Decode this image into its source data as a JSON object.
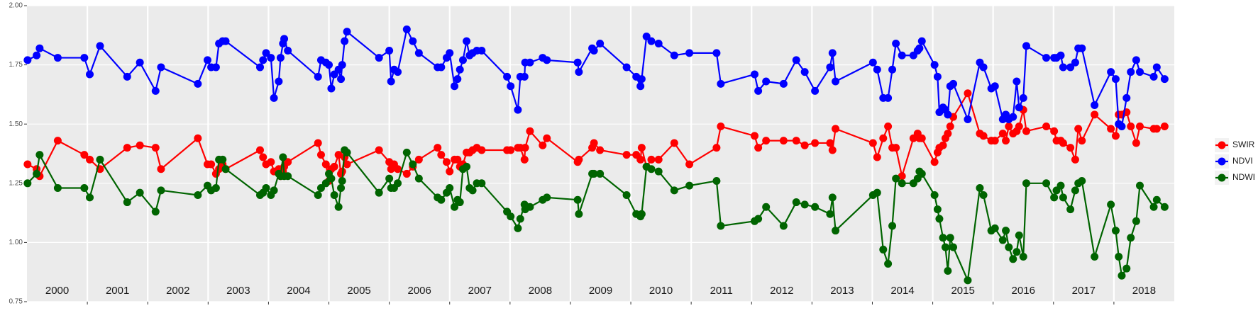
{
  "chart_data": {
    "type": "line",
    "x": [
      2000.01,
      2000.16,
      2000.21,
      2000.51,
      2000.95,
      2001.04,
      2001.21,
      2001.66,
      2001.87,
      2002.13,
      2002.22,
      2002.83,
      2002.99,
      2003.05,
      2003.13,
      2003.18,
      2003.24,
      2003.29,
      2003.86,
      2003.91,
      2003.96,
      2004.04,
      2004.09,
      2004.17,
      2004.2,
      2004.24,
      2004.26,
      2004.32,
      2004.82,
      2004.87,
      2004.95,
      2005.0,
      2005.04,
      2005.09,
      2005.16,
      2005.2,
      2005.22,
      2005.26,
      2005.3,
      2005.83,
      2006.0,
      2006.03,
      2006.08,
      2006.14,
      2006.29,
      2006.39,
      2006.49,
      2006.8,
      2006.86,
      2006.95,
      2007.0,
      2007.08,
      2007.13,
      2007.17,
      2007.22,
      2007.28,
      2007.33,
      2007.38,
      2007.45,
      2007.53,
      2007.95,
      2008.01,
      2008.13,
      2008.17,
      2008.24,
      2008.25,
      2008.33,
      2008.54,
      2008.61,
      2009.12,
      2009.14,
      2009.36,
      2009.39,
      2009.49,
      2009.93,
      2010.09,
      2010.16,
      2010.18,
      2010.26,
      2010.34,
      2010.46,
      2010.72,
      2010.97,
      2011.42,
      2011.49,
      2012.05,
      2012.11,
      2012.24,
      2012.53,
      2012.74,
      2012.88,
      2013.05,
      2013.3,
      2013.34,
      2013.39,
      2014.01,
      2014.08,
      2014.18,
      2014.26,
      2014.33,
      2014.39,
      2014.49,
      2014.68,
      2014.75,
      2014.78,
      2014.82,
      2015.03,
      2015.08,
      2015.11,
      2015.17,
      2015.21,
      2015.25,
      2015.29,
      2015.34,
      2015.58,
      2015.78,
      2015.84,
      2015.97,
      2016.03,
      2016.16,
      2016.21,
      2016.26,
      2016.33,
      2016.39,
      2016.43,
      2016.5,
      2016.55,
      2016.88,
      2017.01,
      2017.05,
      2017.12,
      2017.16,
      2017.28,
      2017.36,
      2017.41,
      2017.47,
      2017.68,
      2017.95,
      2018.03,
      2018.08,
      2018.13,
      2018.21,
      2018.28,
      2018.37,
      2018.43,
      2018.66,
      2018.71,
      2018.84
    ],
    "series": [
      {
        "name": "SWIR",
        "color": "#ff0000",
        "values": [
          1.33,
          1.31,
          1.28,
          1.43,
          1.37,
          1.35,
          1.31,
          1.4,
          1.41,
          1.4,
          1.31,
          1.44,
          1.33,
          1.33,
          1.29,
          1.31,
          1.33,
          1.31,
          1.39,
          1.36,
          1.33,
          1.34,
          1.3,
          1.31,
          1.28,
          1.3,
          1.32,
          1.34,
          1.42,
          1.37,
          1.33,
          1.26,
          1.31,
          1.32,
          1.37,
          1.29,
          1.3,
          1.36,
          1.33,
          1.39,
          1.34,
          1.31,
          1.33,
          1.31,
          1.29,
          1.32,
          1.35,
          1.4,
          1.37,
          1.34,
          1.3,
          1.35,
          1.35,
          1.32,
          1.33,
          1.38,
          1.38,
          1.39,
          1.4,
          1.39,
          1.39,
          1.39,
          1.4,
          1.4,
          1.35,
          1.4,
          1.47,
          1.41,
          1.44,
          1.34,
          1.35,
          1.4,
          1.42,
          1.39,
          1.37,
          1.37,
          1.35,
          1.4,
          1.32,
          1.35,
          1.35,
          1.42,
          1.33,
          1.4,
          1.49,
          1.45,
          1.4,
          1.43,
          1.43,
          1.43,
          1.41,
          1.42,
          1.42,
          1.39,
          1.48,
          1.42,
          1.36,
          1.44,
          1.49,
          1.4,
          1.4,
          1.28,
          1.44,
          1.46,
          1.44,
          1.44,
          1.34,
          1.38,
          1.4,
          1.41,
          1.44,
          1.46,
          1.49,
          1.53,
          1.63,
          1.46,
          1.45,
          1.43,
          1.43,
          1.46,
          1.43,
          1.49,
          1.46,
          1.47,
          1.49,
          1.56,
          1.47,
          1.49,
          1.47,
          1.43,
          1.43,
          1.42,
          1.4,
          1.35,
          1.48,
          1.43,
          1.54,
          1.48,
          1.45,
          1.54,
          1.54,
          1.55,
          1.49,
          1.42,
          1.49,
          1.48,
          1.48,
          1.49
        ]
      },
      {
        "name": "NDVI",
        "color": "#0000ff",
        "values": [
          1.77,
          1.79,
          1.82,
          1.78,
          1.78,
          1.71,
          1.83,
          1.7,
          1.76,
          1.64,
          1.74,
          1.67,
          1.77,
          1.74,
          1.74,
          1.84,
          1.85,
          1.85,
          1.74,
          1.77,
          1.8,
          1.78,
          1.61,
          1.68,
          1.78,
          1.84,
          1.86,
          1.81,
          1.7,
          1.77,
          1.76,
          1.75,
          1.65,
          1.71,
          1.73,
          1.69,
          1.75,
          1.85,
          1.89,
          1.78,
          1.81,
          1.68,
          1.73,
          1.72,
          1.9,
          1.85,
          1.8,
          1.74,
          1.74,
          1.78,
          1.8,
          1.66,
          1.69,
          1.73,
          1.77,
          1.85,
          1.79,
          1.8,
          1.81,
          1.81,
          1.7,
          1.66,
          1.56,
          1.7,
          1.7,
          1.76,
          1.76,
          1.78,
          1.77,
          1.76,
          1.72,
          1.82,
          1.81,
          1.84,
          1.74,
          1.7,
          1.66,
          1.69,
          1.87,
          1.85,
          1.84,
          1.79,
          1.8,
          1.8,
          1.67,
          1.71,
          1.64,
          1.68,
          1.67,
          1.77,
          1.72,
          1.64,
          1.74,
          1.8,
          1.68,
          1.76,
          1.73,
          1.61,
          1.61,
          1.73,
          1.84,
          1.79,
          1.79,
          1.81,
          1.82,
          1.85,
          1.75,
          1.7,
          1.55,
          1.57,
          1.56,
          1.54,
          1.66,
          1.67,
          1.52,
          1.76,
          1.74,
          1.65,
          1.66,
          1.52,
          1.54,
          1.52,
          1.53,
          1.68,
          1.57,
          1.61,
          1.83,
          1.78,
          1.78,
          1.78,
          1.79,
          1.74,
          1.74,
          1.76,
          1.82,
          1.82,
          1.58,
          1.72,
          1.69,
          1.5,
          1.49,
          1.61,
          1.72,
          1.77,
          1.72,
          1.7,
          1.74,
          1.69
        ]
      },
      {
        "name": "NDWI",
        "color": "#006400",
        "values": [
          1.25,
          1.29,
          1.37,
          1.23,
          1.23,
          1.19,
          1.35,
          1.17,
          1.21,
          1.13,
          1.22,
          1.2,
          1.24,
          1.22,
          1.23,
          1.35,
          1.35,
          1.31,
          1.2,
          1.21,
          1.23,
          1.2,
          1.22,
          1.29,
          1.28,
          1.36,
          1.28,
          1.28,
          1.2,
          1.23,
          1.25,
          1.29,
          1.27,
          1.2,
          1.15,
          1.23,
          1.26,
          1.39,
          1.38,
          1.21,
          1.27,
          1.23,
          1.23,
          1.25,
          1.38,
          1.33,
          1.27,
          1.19,
          1.18,
          1.21,
          1.23,
          1.15,
          1.18,
          1.17,
          1.31,
          1.32,
          1.23,
          1.22,
          1.25,
          1.25,
          1.13,
          1.11,
          1.06,
          1.1,
          1.16,
          1.14,
          1.15,
          1.18,
          1.19,
          1.18,
          1.12,
          1.29,
          1.29,
          1.29,
          1.2,
          1.12,
          1.11,
          1.12,
          1.32,
          1.31,
          1.3,
          1.22,
          1.24,
          1.26,
          1.07,
          1.09,
          1.1,
          1.15,
          1.07,
          1.17,
          1.16,
          1.15,
          1.12,
          1.19,
          1.05,
          1.2,
          1.21,
          0.97,
          0.91,
          1.07,
          1.27,
          1.25,
          1.25,
          1.27,
          1.3,
          1.29,
          1.2,
          1.14,
          1.1,
          1.02,
          0.98,
          0.88,
          1.02,
          0.98,
          0.84,
          1.23,
          1.2,
          1.05,
          1.06,
          1.01,
          1.05,
          0.98,
          0.93,
          0.96,
          1.03,
          0.94,
          1.25,
          1.25,
          1.19,
          1.22,
          1.24,
          1.19,
          1.14,
          1.22,
          1.25,
          1.26,
          0.94,
          1.16,
          1.05,
          0.94,
          0.86,
          0.89,
          1.02,
          1.09,
          1.24,
          1.15,
          1.18,
          1.15
        ]
      }
    ],
    "xlim": [
      2000,
      2019
    ],
    "xticks": [
      {
        "value": 2000.5,
        "label": "2000"
      },
      {
        "value": 2001.5,
        "label": "2001"
      },
      {
        "value": 2002.5,
        "label": "2002"
      },
      {
        "value": 2003.5,
        "label": "2003"
      },
      {
        "value": 2004.5,
        "label": "2004"
      },
      {
        "value": 2005.5,
        "label": "2005"
      },
      {
        "value": 2006.5,
        "label": "2006"
      },
      {
        "value": 2007.5,
        "label": "2007"
      },
      {
        "value": 2008.5,
        "label": "2008"
      },
      {
        "value": 2009.5,
        "label": "2009"
      },
      {
        "value": 2010.5,
        "label": "2010"
      },
      {
        "value": 2011.5,
        "label": "2011"
      },
      {
        "value": 2012.5,
        "label": "2012"
      },
      {
        "value": 2013.5,
        "label": "2013"
      },
      {
        "value": 2014.5,
        "label": "2014"
      },
      {
        "value": 2015.5,
        "label": "2015"
      },
      {
        "value": 2016.5,
        "label": "2016"
      },
      {
        "value": 2017.5,
        "label": "2017"
      },
      {
        "value": 2018.5,
        "label": "2018"
      }
    ],
    "xgrid": [
      2001,
      2002,
      2003,
      2004,
      2005,
      2006,
      2007,
      2008,
      2009,
      2010,
      2011,
      2012,
      2013,
      2014,
      2015,
      2016,
      2017,
      2018
    ],
    "ylim": [
      0.75,
      2.0
    ],
    "yticks": [
      {
        "value": 0.75,
        "label": "0.75"
      },
      {
        "value": 1,
        "label": "1.00"
      },
      {
        "value": 1.25,
        "label": "1.25"
      },
      {
        "value": 1.5,
        "label": "1.50"
      },
      {
        "value": 1.75,
        "label": "1.75"
      },
      {
        "value": 2,
        "label": "2.00"
      }
    ],
    "grid": true,
    "legend": "right"
  }
}
